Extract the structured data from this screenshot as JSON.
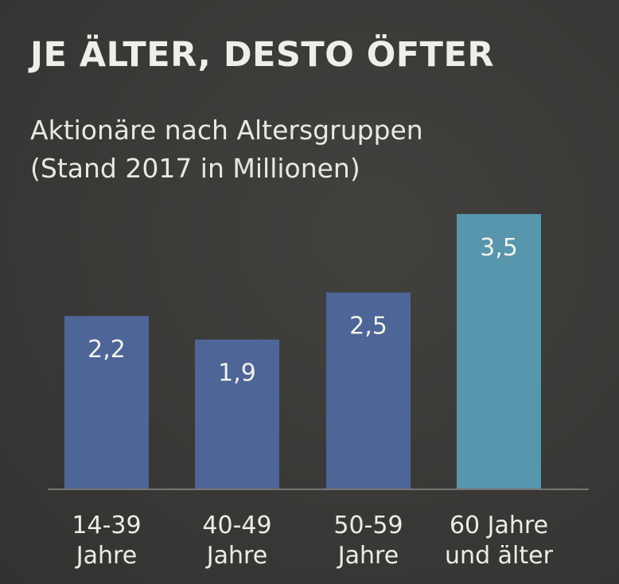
{
  "chart_data": {
    "type": "bar",
    "title": "JE ÄLTER, DESTO ÖFTER",
    "subtitle_lines": [
      "Aktionäre nach Altersgruppen",
      "(Stand 2017 in Millionen)"
    ],
    "categories": [
      [
        "14-39",
        "Jahre"
      ],
      [
        "40-49",
        "Jahre"
      ],
      [
        "50-59",
        "Jahre"
      ],
      [
        "60 Jahre",
        "und älter"
      ]
    ],
    "values": [
      2.2,
      1.9,
      2.5,
      3.5
    ],
    "value_labels": [
      "2,2",
      "1,9",
      "2,5",
      "3,5"
    ],
    "colors": [
      "#4d6597",
      "#4d6597",
      "#4d6597",
      "#5796ac"
    ],
    "ylim": [
      0,
      3.5
    ],
    "grid": false,
    "legend": "none"
  }
}
